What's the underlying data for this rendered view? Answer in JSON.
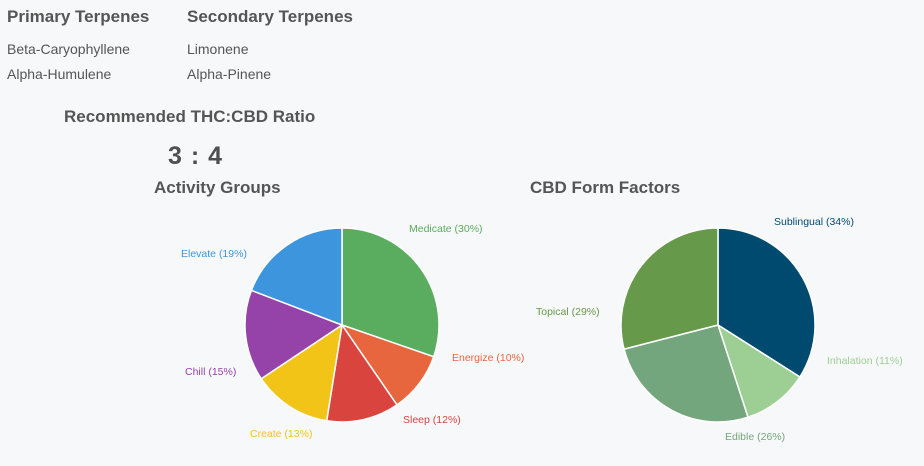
{
  "terpenes": {
    "primary": {
      "heading": "Primary Terpenes",
      "items": [
        "Beta-Caryophyllene",
        "Alpha-Humulene"
      ]
    },
    "secondary": {
      "heading": "Secondary Terpenes",
      "items": [
        "Limonene",
        "Alpha-Pinene"
      ]
    }
  },
  "ratio": {
    "title": "Recommended THC:CBD Ratio",
    "value": "3 : 4"
  },
  "chart_data": [
    {
      "type": "pie",
      "title": "Activity Groups",
      "slices": [
        {
          "label": "Medicate (30%)",
          "value": 30,
          "color": "#5aac5f"
        },
        {
          "label": "Energize (10%)",
          "value": 10,
          "color": "#e8663d"
        },
        {
          "label": "Sleep (12%)",
          "value": 12,
          "color": "#d9443f"
        },
        {
          "label": "Create (13%)",
          "value": 13,
          "color": "#f2c418"
        },
        {
          "label": "Chill (15%)",
          "value": 15,
          "color": "#9543a9"
        },
        {
          "label": "Elevate (19%)",
          "value": 19,
          "color": "#3d96dd"
        }
      ]
    },
    {
      "type": "pie",
      "title": "CBD Form Factors",
      "slices": [
        {
          "label": "Sublingual (34%)",
          "value": 34,
          "color": "#004a70"
        },
        {
          "label": "Inhalation (11%)",
          "value": 11,
          "color": "#9dcf94"
        },
        {
          "label": "Edible (26%)",
          "value": 26,
          "color": "#73a67c"
        },
        {
          "label": "Topical (29%)",
          "value": 29,
          "color": "#67994a"
        }
      ]
    }
  ]
}
